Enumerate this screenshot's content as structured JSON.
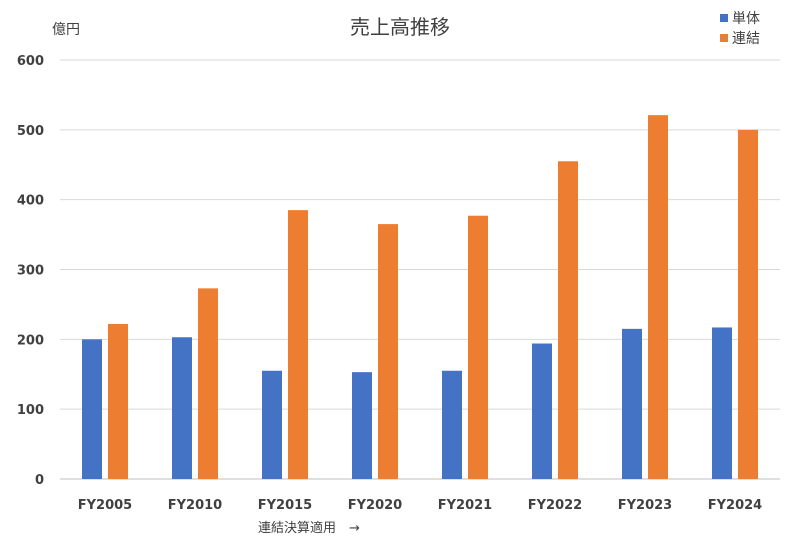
{
  "chart_data": {
    "type": "bar",
    "title": "売上高推移",
    "unit_label": "億円",
    "categories": [
      "FY2005",
      "FY2010",
      "FY2015",
      "FY2020",
      "FY2021",
      "FY2022",
      "FY2023",
      "FY2024"
    ],
    "series": [
      {
        "name": "単体",
        "color": "#4472c4",
        "values": [
          200,
          203,
          155,
          153,
          155,
          194,
          215,
          217
        ]
      },
      {
        "name": "連結",
        "color": "#ed7d31",
        "values": [
          222,
          273,
          385,
          365,
          377,
          455,
          521,
          500
        ]
      }
    ],
    "ylim": [
      0,
      600
    ],
    "yticks": [
      0,
      100,
      200,
      300,
      400,
      500,
      600
    ],
    "grid": true,
    "legend_position": "top-right",
    "annotation": "連結決算適用　→"
  }
}
